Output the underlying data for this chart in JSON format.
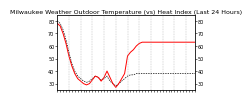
{
  "title": "Milwaukee Weather Outdoor Temperature (vs) Heat Index (Last 24 Hours)",
  "background_color": "#ffffff",
  "plot_bg_color": "#ffffff",
  "grid_color": "#999999",
  "temp_color": "#000000",
  "heat_color": "#ff0000",
  "ylim": [
    25,
    85
  ],
  "xlim": [
    0,
    47
  ],
  "temp_values": [
    80,
    78,
    73,
    65,
    55,
    46,
    40,
    36,
    34,
    32,
    31,
    32,
    34,
    36,
    35,
    33,
    34,
    36,
    32,
    30,
    28,
    30,
    32,
    34,
    36,
    37,
    37,
    38,
    38,
    38,
    38,
    38,
    38,
    38,
    38,
    38,
    38,
    38,
    38,
    38,
    38,
    38,
    38,
    38,
    38,
    38,
    38,
    38
  ],
  "heat_values": [
    78,
    76,
    70,
    62,
    52,
    44,
    38,
    34,
    32,
    30,
    29,
    30,
    33,
    36,
    35,
    32,
    35,
    40,
    35,
    30,
    27,
    30,
    34,
    38,
    52,
    55,
    57,
    60,
    62,
    63,
    63,
    63,
    63,
    63,
    63,
    63,
    63,
    63,
    63,
    63,
    63,
    63,
    63,
    63,
    63,
    63,
    63,
    63
  ],
  "grid_x_positions": [
    4,
    8,
    12,
    16,
    20,
    24,
    28,
    32,
    36,
    40,
    44
  ],
  "title_fontsize": 4.5,
  "tick_fontsize": 3.5,
  "ytick_interval": 10
}
